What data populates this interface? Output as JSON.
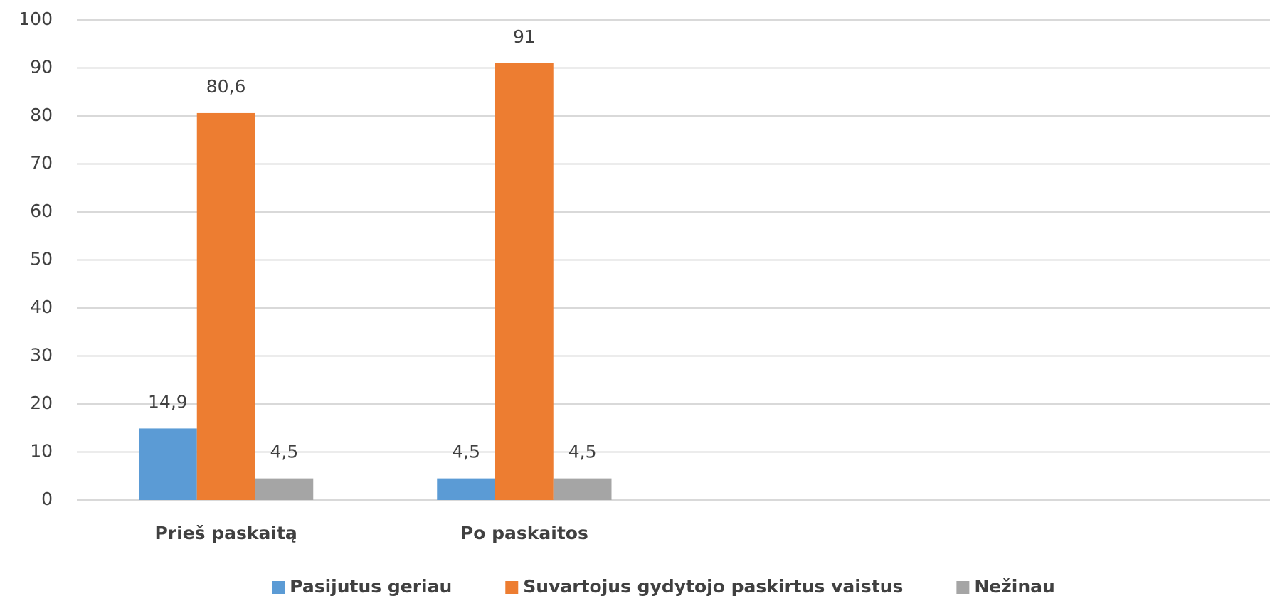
{
  "chart_data": {
    "type": "bar",
    "categories": [
      "Prieš paskaitą",
      "Po paskaitos",
      null,
      null
    ],
    "series": [
      {
        "name": "Pasijutus geriau",
        "color": "#5b9bd5",
        "values": [
          14.9,
          4.5,
          null,
          null
        ],
        "value_labels": [
          "14,9",
          "4,5",
          null,
          null
        ]
      },
      {
        "name": "Suvartojus gydytojo paskirtus vaistus",
        "color": "#ed7d31",
        "values": [
          80.6,
          91,
          null,
          null
        ],
        "value_labels": [
          "80,6",
          "91",
          null,
          null
        ]
      },
      {
        "name": "Nežinau",
        "color": "#a5a5a5",
        "values": [
          4.5,
          4.5,
          null,
          null
        ],
        "value_labels": [
          "4,5",
          "4,5",
          null,
          null
        ]
      }
    ],
    "ylim": [
      0,
      100
    ],
    "yticks": [
      0,
      10,
      20,
      30,
      40,
      50,
      60,
      70,
      80,
      90,
      100
    ],
    "grid": true,
    "legend": "bottom"
  }
}
